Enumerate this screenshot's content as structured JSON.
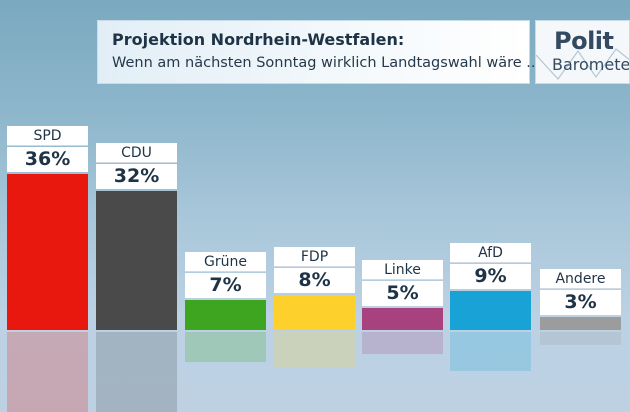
{
  "header": {
    "title": "Projektion Nordrhein-Westfalen:",
    "subtitle": "Wenn am nächsten Sonntag wirklich Landtagswahl wäre ..."
  },
  "logo": {
    "line1": "Polit",
    "line2": "Barometer"
  },
  "chart_data": {
    "type": "bar",
    "title": "Projektion Nordrhein-Westfalen:",
    "subtitle": "Wenn am nächsten Sonntag wirklich Landtagswahl wäre ...",
    "categories": [
      "SPD",
      "CDU",
      "Grüne",
      "FDP",
      "Linke",
      "AfD",
      "Andere"
    ],
    "values": [
      36,
      32,
      7,
      8,
      5,
      9,
      3
    ],
    "labels": [
      "36%",
      "32%",
      "7%",
      "8%",
      "5%",
      "9%",
      "3%"
    ],
    "colors": [
      "#e8180f",
      "#4a4a4a",
      "#3ea521",
      "#fdd02c",
      "#a8427e",
      "#19a2d6",
      "#9c9c9c"
    ],
    "unit": "%",
    "ylim": [
      0,
      36
    ],
    "grid": false,
    "legend": "none"
  }
}
